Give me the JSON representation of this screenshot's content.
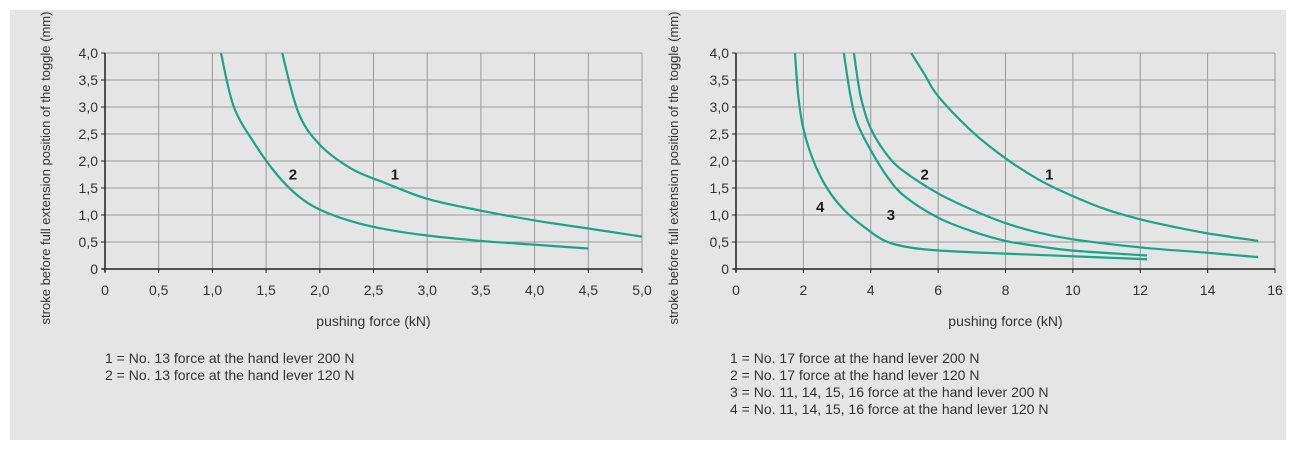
{
  "colors": {
    "curve": "#1aa48a",
    "grid": "#9a9a9a",
    "axis": "#222222",
    "background": "#e5e5e5"
  },
  "chart_data": [
    {
      "type": "line",
      "xlabel": "pushing force (kN)",
      "ylabel": "stroke before full extension position of the toggle (mm)",
      "xlim": [
        0,
        5.0
      ],
      "ylim": [
        0,
        4.0
      ],
      "x_ticks": [
        "0",
        "0,5",
        "1,0",
        "1,5",
        "2,0",
        "2,5",
        "3,0",
        "3,5",
        "4,0",
        "4,5",
        "5,0"
      ],
      "y_ticks": [
        "0",
        "0,5",
        "1,0",
        "1,5",
        "2,0",
        "2,5",
        "3,0",
        "3,5",
        "4,0"
      ],
      "grid": true,
      "series": [
        {
          "name": "1",
          "points": [
            [
              1.65,
              4.0
            ],
            [
              1.8,
              2.9
            ],
            [
              2.0,
              2.3
            ],
            [
              2.3,
              1.85
            ],
            [
              2.6,
              1.6
            ],
            [
              3.0,
              1.3
            ],
            [
              3.5,
              1.08
            ],
            [
              4.0,
              0.9
            ],
            [
              4.5,
              0.75
            ],
            [
              5.0,
              0.6
            ]
          ],
          "label_pos": [
            2.7,
            1.75
          ]
        },
        {
          "name": "2",
          "points": [
            [
              1.08,
              4.0
            ],
            [
              1.2,
              3.0
            ],
            [
              1.4,
              2.3
            ],
            [
              1.6,
              1.75
            ],
            [
              1.8,
              1.35
            ],
            [
              2.0,
              1.1
            ],
            [
              2.3,
              0.88
            ],
            [
              2.6,
              0.74
            ],
            [
              3.0,
              0.62
            ],
            [
              3.5,
              0.52
            ],
            [
              4.0,
              0.45
            ],
            [
              4.5,
              0.38
            ]
          ],
          "label_pos": [
            1.75,
            1.75
          ]
        }
      ],
      "legend": [
        "1 = No. 13 force at the hand lever 200 N",
        "2 = No. 13 force at the hand lever 120 N"
      ]
    },
    {
      "type": "line",
      "xlabel": "pushing force (kN)",
      "ylabel": "stroke before full extension position of the toggle (mm)",
      "xlim": [
        0,
        16
      ],
      "ylim": [
        0,
        4.0
      ],
      "x_ticks": [
        "0",
        "2",
        "4",
        "6",
        "8",
        "10",
        "12",
        "14",
        "16"
      ],
      "y_ticks": [
        "0",
        "0,5",
        "1,0",
        "1,5",
        "2,0",
        "2,5",
        "3,0",
        "3,5",
        "4,0"
      ],
      "grid": true,
      "series": [
        {
          "name": "1",
          "points": [
            [
              5.2,
              4.0
            ],
            [
              5.6,
              3.6
            ],
            [
              6.0,
              3.2
            ],
            [
              7.0,
              2.55
            ],
            [
              8.0,
              2.05
            ],
            [
              9.0,
              1.65
            ],
            [
              10.0,
              1.35
            ],
            [
              11.0,
              1.1
            ],
            [
              12.0,
              0.92
            ],
            [
              13.0,
              0.78
            ],
            [
              14.0,
              0.66
            ],
            [
              15.5,
              0.52
            ]
          ],
          "label_pos": [
            9.3,
            1.75
          ]
        },
        {
          "name": "2",
          "points": [
            [
              3.5,
              4.0
            ],
            [
              3.7,
              3.2
            ],
            [
              4.0,
              2.6
            ],
            [
              4.5,
              2.1
            ],
            [
              5.0,
              1.8
            ],
            [
              6.0,
              1.4
            ],
            [
              7.0,
              1.1
            ],
            [
              8.0,
              0.85
            ],
            [
              9.0,
              0.67
            ],
            [
              10.0,
              0.55
            ],
            [
              12.0,
              0.4
            ],
            [
              14.0,
              0.3
            ],
            [
              15.5,
              0.22
            ]
          ],
          "label_pos": [
            5.6,
            1.75
          ]
        },
        {
          "name": "3",
          "points": [
            [
              3.2,
              4.0
            ],
            [
              3.4,
              3.2
            ],
            [
              3.6,
              2.7
            ],
            [
              4.0,
              2.2
            ],
            [
              4.5,
              1.7
            ],
            [
              5.0,
              1.35
            ],
            [
              6.0,
              0.95
            ],
            [
              7.0,
              0.7
            ],
            [
              8.0,
              0.52
            ],
            [
              9.0,
              0.42
            ],
            [
              10.0,
              0.34
            ],
            [
              12.2,
              0.25
            ]
          ],
          "label_pos": [
            4.6,
            1.0
          ]
        },
        {
          "name": "4",
          "points": [
            [
              1.75,
              4.0
            ],
            [
              1.85,
              3.2
            ],
            [
              2.0,
              2.6
            ],
            [
              2.3,
              2.0
            ],
            [
              2.7,
              1.5
            ],
            [
              3.2,
              1.1
            ],
            [
              3.8,
              0.78
            ],
            [
              4.5,
              0.5
            ],
            [
              5.5,
              0.37
            ],
            [
              7.0,
              0.31
            ],
            [
              9.0,
              0.26
            ],
            [
              12.2,
              0.18
            ]
          ],
          "label_pos": [
            2.5,
            1.15
          ]
        }
      ],
      "legend": [
        "1 = No. 17 force at the hand lever 200 N",
        "2 = No. 17 force at the hand lever 120 N",
        "3 = No. 11, 14, 15, 16 force at the hand lever 200 N",
        "4 = No. 11, 14, 15, 16 force at the hand lever 120 N"
      ]
    }
  ]
}
